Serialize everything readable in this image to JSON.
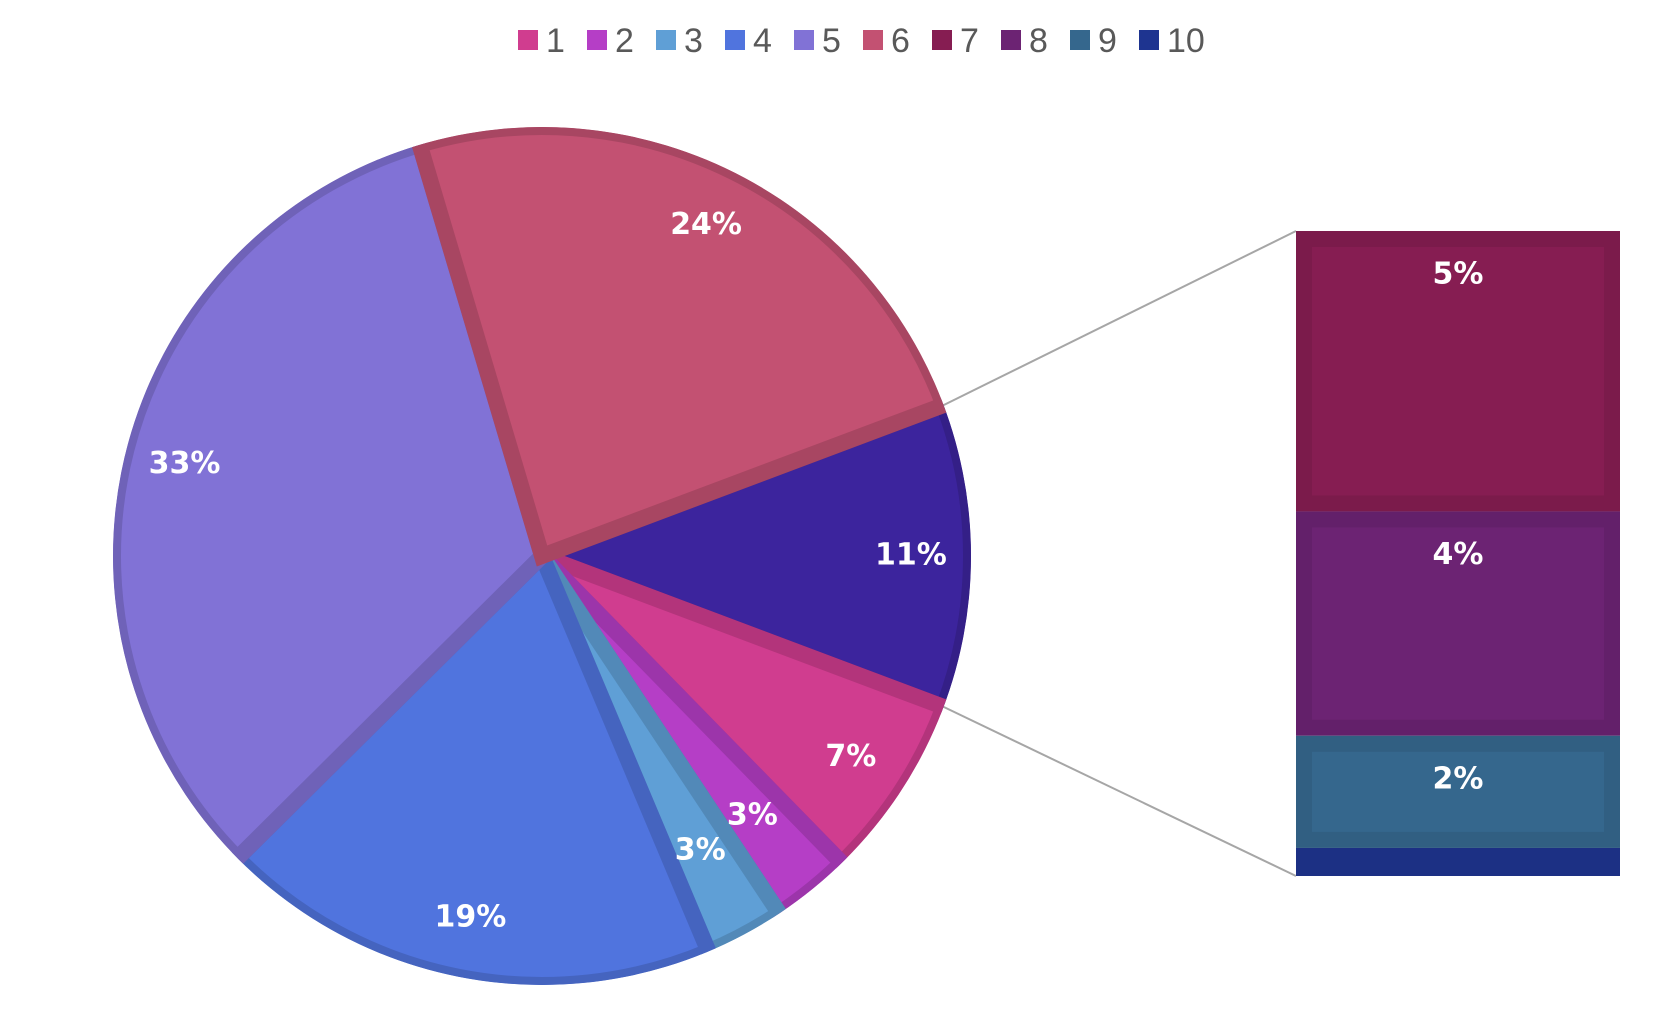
{
  "chart_data": {
    "type": "pie",
    "subtype": "bar-of-pie",
    "categories": [
      "1",
      "2",
      "3",
      "4",
      "5",
      "6",
      "7",
      "8",
      "9",
      "10"
    ],
    "values": [
      7,
      3,
      3,
      19,
      33,
      24,
      5,
      4,
      2,
      0.5
    ],
    "labels": [
      "7%",
      "3%",
      "3%",
      "19%",
      "33%",
      "24%",
      "5%",
      "4%",
      "2%",
      ""
    ],
    "colors": [
      "#d03d8f",
      "#b53ec6",
      "#5f9fd6",
      "#5074de",
      "#8172d6",
      "#c35172",
      "#861d52",
      "#6c2373",
      "#35678d",
      "#1e3490"
    ],
    "other_slice": {
      "label": "11%",
      "color": "#3c249d"
    },
    "legend": {
      "position": "top",
      "entries": [
        "1",
        "2",
        "3",
        "4",
        "5",
        "6",
        "7",
        "8",
        "9",
        "10"
      ]
    },
    "title": "",
    "xlabel": "",
    "ylabel": ""
  }
}
